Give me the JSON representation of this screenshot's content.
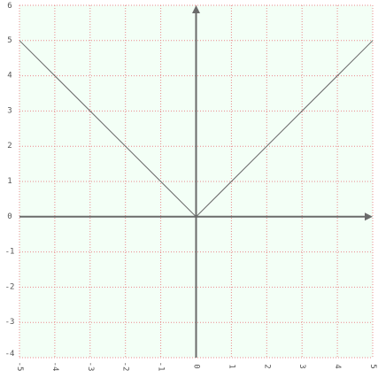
{
  "chart_data": {
    "type": "line",
    "title": "",
    "xlabel": "",
    "ylabel": "",
    "xlim": [
      -5,
      5
    ],
    "ylim": [
      -4,
      6
    ],
    "grid": true,
    "x_ticks": [
      -5,
      -4,
      -3,
      -2,
      -1,
      0,
      1,
      2,
      3,
      4,
      5
    ],
    "y_ticks": [
      -4,
      -3,
      -2,
      -1,
      0,
      1,
      2,
      3,
      4,
      5,
      6
    ],
    "x_tick_labels": [
      "-5",
      "-4",
      "-3",
      "-2",
      "-1",
      "0",
      "1",
      "2",
      "3",
      "4",
      "5"
    ],
    "y_tick_labels": [
      "-4",
      "-3",
      "-2",
      "-1",
      "0",
      "1",
      "2",
      "3",
      "4",
      "5",
      "6"
    ],
    "series": [
      {
        "x": [
          -5,
          -4,
          -3,
          -2,
          -1,
          0,
          1,
          2,
          3,
          4,
          5
        ],
        "y": [
          5,
          4,
          3,
          2,
          1,
          0,
          1,
          2,
          3,
          4,
          5
        ]
      }
    ],
    "colors": {
      "background": "#f3fff6",
      "grid": "#e98a8a",
      "axis": "#6b6b6b",
      "line": "#666666",
      "tick_text": "#555555"
    }
  }
}
